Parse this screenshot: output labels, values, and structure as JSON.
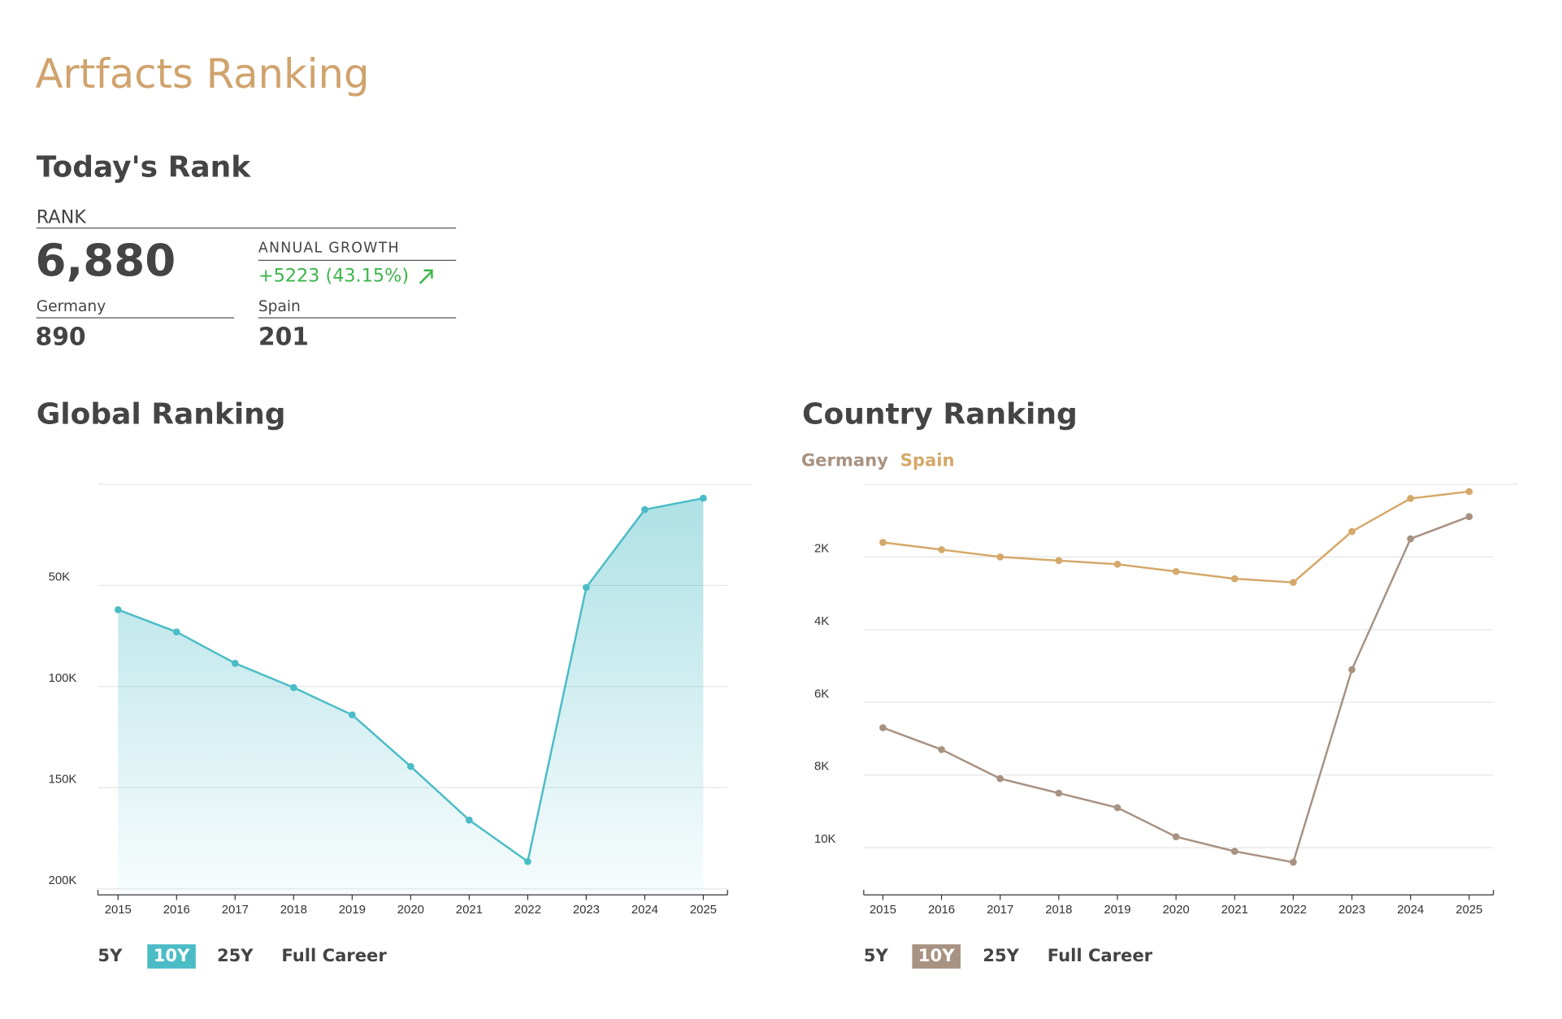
{
  "header": {
    "title": "Artfacts Ranking"
  },
  "todays_rank": {
    "heading": "Today's Rank",
    "rank_label": "RANK",
    "rank": "6,880",
    "growth_label": "ANNUAL GROWTH",
    "growth": "+5223 (43.15%)",
    "germany_label": "Germany",
    "germany_value": "890",
    "spain_label": "Spain",
    "spain_value": "201"
  },
  "range_buttons": [
    "5Y",
    "10Y",
    "25Y",
    "Full Career"
  ],
  "selected_range": 1,
  "chart_data": [
    {
      "type": "area",
      "title": "Global Ranking",
      "x": [
        2015,
        2016,
        2017,
        2018,
        2019,
        2020,
        2021,
        2022,
        2023,
        2024,
        2025
      ],
      "xlim": [
        2015,
        2025
      ],
      "xticks": [
        2015,
        2016,
        2017,
        2018,
        2019,
        2020,
        2021,
        2022,
        2023,
        2024,
        2025
      ],
      "series": [
        {
          "name": "Global",
          "color": "#4bbcc6",
          "values": [
            62000,
            73000,
            88500,
            100500,
            114000,
            139500,
            166000,
            186500,
            51000,
            12500,
            6880
          ]
        }
      ],
      "ylim": [
        203000,
        0
      ],
      "yticks": [
        {
          "value": 50000,
          "label": "50K"
        },
        {
          "value": 100000,
          "label": "100K"
        },
        {
          "value": 150000,
          "label": "150K"
        },
        {
          "value": 200000,
          "label": "200K"
        }
      ],
      "grid": true
    },
    {
      "type": "line",
      "title": "Country Ranking",
      "x": [
        2015,
        2016,
        2017,
        2018,
        2019,
        2020,
        2021,
        2022,
        2023,
        2024,
        2025
      ],
      "xlim": [
        2015,
        2025
      ],
      "xticks": [
        2015,
        2016,
        2017,
        2018,
        2019,
        2020,
        2021,
        2022,
        2023,
        2024,
        2025
      ],
      "series": [
        {
          "name": "Germany",
          "color": "#a89282",
          "values": [
            6700,
            7300,
            8100,
            8500,
            8900,
            9700,
            10100,
            10400,
            5100,
            1500,
            890
          ]
        },
        {
          "name": "Spain",
          "color": "#d4a96a",
          "values": [
            1600,
            1800,
            2000,
            2100,
            2200,
            2400,
            2600,
            2700,
            1300,
            390,
            201
          ]
        }
      ],
      "ylim": [
        11300,
        0
      ],
      "yticks": [
        {
          "value": 2000,
          "label": "2K"
        },
        {
          "value": 4000,
          "label": "4K"
        },
        {
          "value": 6000,
          "label": "6K"
        },
        {
          "value": 8000,
          "label": "8K"
        },
        {
          "value": 10000,
          "label": "10K"
        }
      ],
      "grid": true,
      "legend": "top-left"
    }
  ]
}
